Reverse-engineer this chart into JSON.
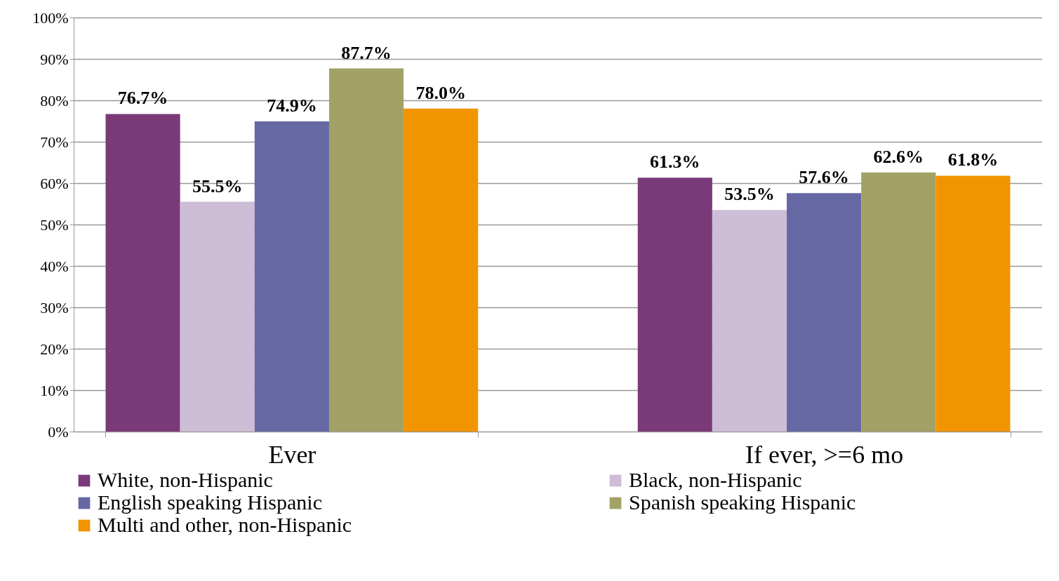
{
  "chart_data": {
    "type": "bar",
    "categories": [
      "Ever",
      "If ever, >=6 mo"
    ],
    "series": [
      {
        "name": "White, non-Hispanic",
        "color": "#7a3a78",
        "values": [
          76.7,
          61.3
        ],
        "value_labels": [
          "76.7%",
          "61.3%"
        ]
      },
      {
        "name": "Black, non-Hispanic",
        "color": "#cdbdd6",
        "values": [
          55.5,
          53.5
        ],
        "value_labels": [
          "55.5%",
          "53.5%"
        ]
      },
      {
        "name": "English speaking Hispanic",
        "color": "#6668a4",
        "values": [
          74.9,
          57.6
        ],
        "value_labels": [
          "74.9%",
          "57.6%"
        ]
      },
      {
        "name": "Spanish speaking Hispanic",
        "color": "#a3a266",
        "values": [
          87.7,
          62.6
        ],
        "value_labels": [
          "87.7%",
          "62.6%"
        ]
      },
      {
        "name": "Multi and other, non-Hispanic",
        "color": "#f29400",
        "values": [
          78.0,
          61.8
        ],
        "value_labels": [
          "78.0%",
          "61.8%"
        ]
      }
    ],
    "ylim": [
      0,
      100
    ],
    "yticks": [
      {
        "value": 0,
        "label": "0%"
      },
      {
        "value": 10,
        "label": "10%"
      },
      {
        "value": 20,
        "label": "20%"
      },
      {
        "value": 30,
        "label": "30%"
      },
      {
        "value": 40,
        "label": "40%"
      },
      {
        "value": 50,
        "label": "50%"
      },
      {
        "value": 60,
        "label": "60%"
      },
      {
        "value": 70,
        "label": "70%"
      },
      {
        "value": 80,
        "label": "80%"
      },
      {
        "value": 90,
        "label": "90%"
      },
      {
        "value": 100,
        "label": "100%"
      }
    ],
    "grid": "y",
    "legend": "bottom"
  }
}
